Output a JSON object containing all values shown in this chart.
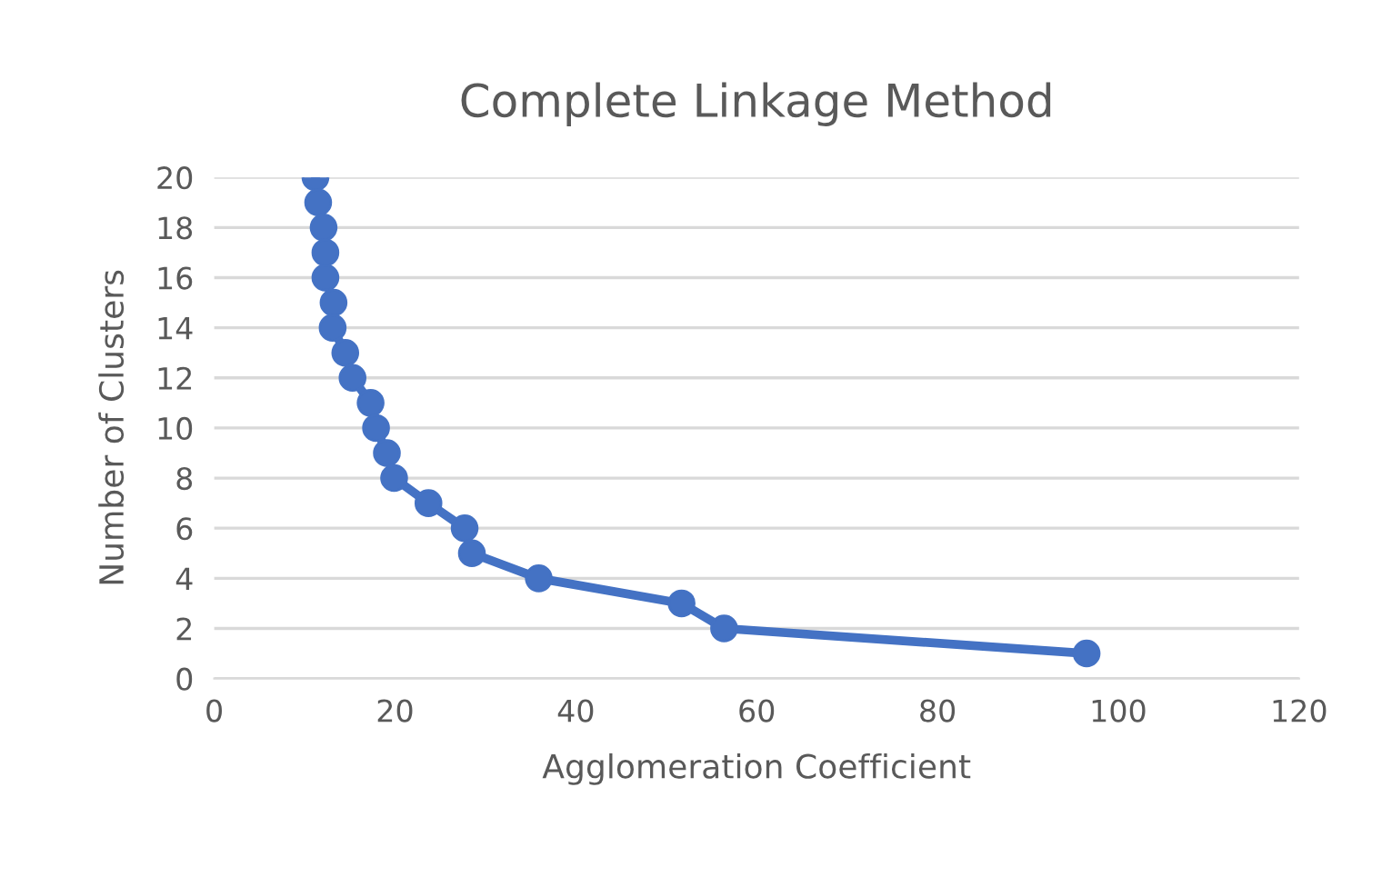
{
  "chart_data": {
    "type": "line",
    "title": "Complete Linkage Method",
    "xlabel": "Agglomeration Coefficient",
    "ylabel": "Number of Clusters",
    "series": [
      {
        "color": "#4472c4",
        "x": [
          11.2,
          11.5,
          12.1,
          12.3,
          12.3,
          13.2,
          13.1,
          14.5,
          15.3,
          17.3,
          17.9,
          19.1,
          19.9,
          23.7,
          27.7,
          28.5,
          35.9,
          51.7,
          56.4,
          96.5
        ],
        "values": [
          20,
          19,
          18,
          17,
          16,
          15,
          14,
          13,
          12,
          11,
          10,
          9,
          8,
          7,
          6,
          5,
          4,
          3,
          2,
          1
        ]
      }
    ],
    "xlim": [
      0,
      120
    ],
    "xticks": [
      0,
      20,
      40,
      60,
      80,
      100,
      120
    ],
    "ylim": [
      0,
      20
    ],
    "yticks": [
      0,
      2,
      4,
      6,
      8,
      10,
      12,
      14,
      16,
      18,
      20
    ],
    "grid": "y",
    "marker": "circle",
    "line_style": "solid"
  }
}
